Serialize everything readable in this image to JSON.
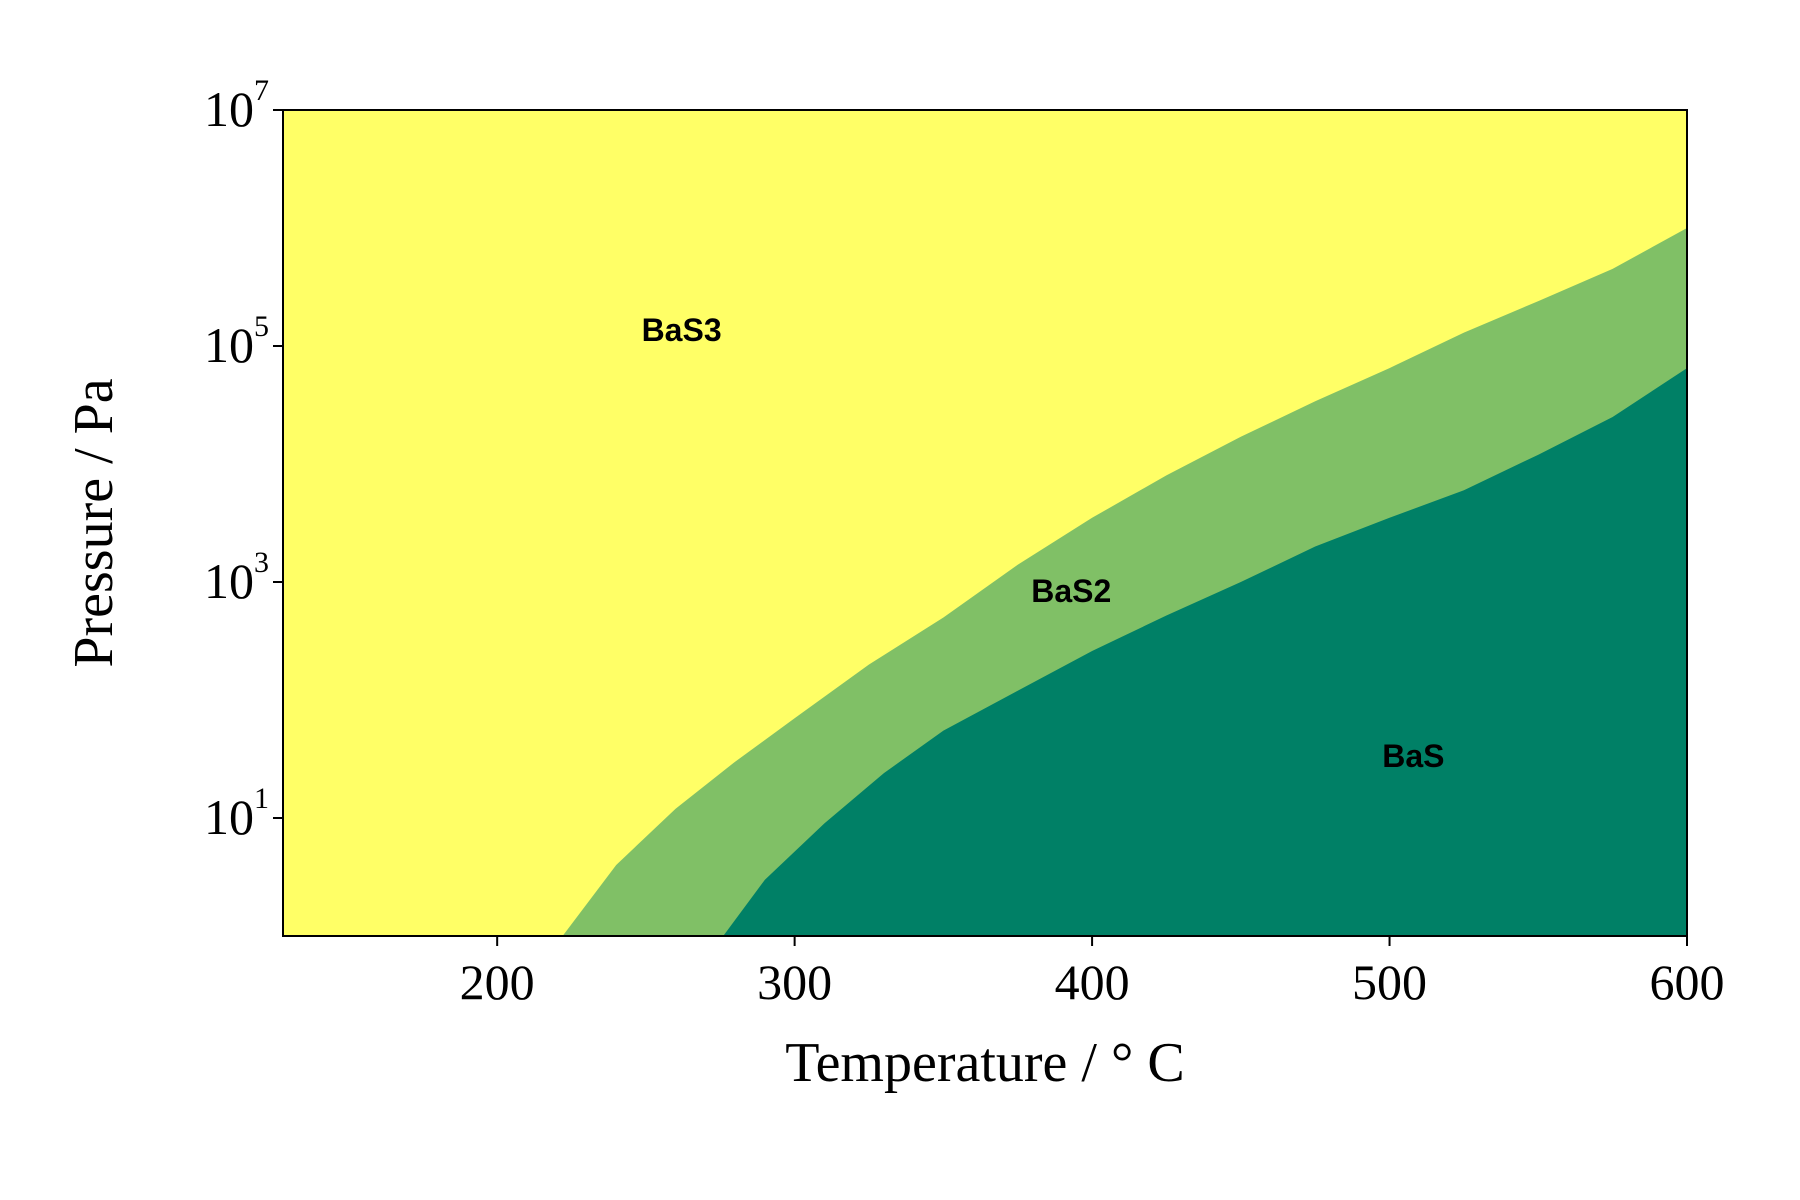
{
  "chart_data": {
    "type": "area",
    "title": "",
    "xlabel": "Temperature / ° C",
    "ylabel": "Pressure / Pa",
    "xlim": [
      128,
      600
    ],
    "ylim": [
      1,
      10000000
    ],
    "yscale": "log",
    "x_ticks": [
      200,
      300,
      400,
      500,
      600
    ],
    "y_ticks": [
      {
        "base": "10",
        "exp": "1",
        "value": 10
      },
      {
        "base": "10",
        "exp": "3",
        "value": 1000
      },
      {
        "base": "10",
        "exp": "5",
        "value": 100000
      },
      {
        "base": "10",
        "exp": "7",
        "value": 10000000
      }
    ],
    "grid": false,
    "colors": {
      "BaS3": "#ffff66",
      "BaS2": "#80c066",
      "BaS": "#008066"
    },
    "regions": [
      {
        "name": "BaS3",
        "label_at": {
          "x": 262,
          "y": 130000
        }
      },
      {
        "name": "BaS2",
        "label_at": {
          "x": 393,
          "y": 800
        }
      },
      {
        "name": "BaS",
        "label_at": {
          "x": 508,
          "y": 32
        }
      }
    ],
    "boundaries": [
      {
        "name": "BaS3/BaS2",
        "x": [
          222,
          240,
          260,
          280,
          300,
          325,
          350,
          375,
          400,
          425,
          450,
          475,
          500,
          525,
          550,
          575,
          600
        ],
        "y": [
          1,
          4,
          12,
          30,
          70,
          200,
          500,
          1400,
          3500,
          8000,
          17000,
          34000,
          65000,
          130000,
          240000,
          450000,
          1000000
        ]
      },
      {
        "name": "BaS2/BaS",
        "x": [
          276,
          290,
          310,
          330,
          350,
          375,
          400,
          425,
          450,
          475,
          500,
          525,
          550,
          575,
          600
        ],
        "y": [
          1,
          3,
          9,
          24,
          55,
          120,
          260,
          520,
          1000,
          2000,
          3500,
          6000,
          12000,
          25000,
          65000
        ]
      }
    ]
  }
}
